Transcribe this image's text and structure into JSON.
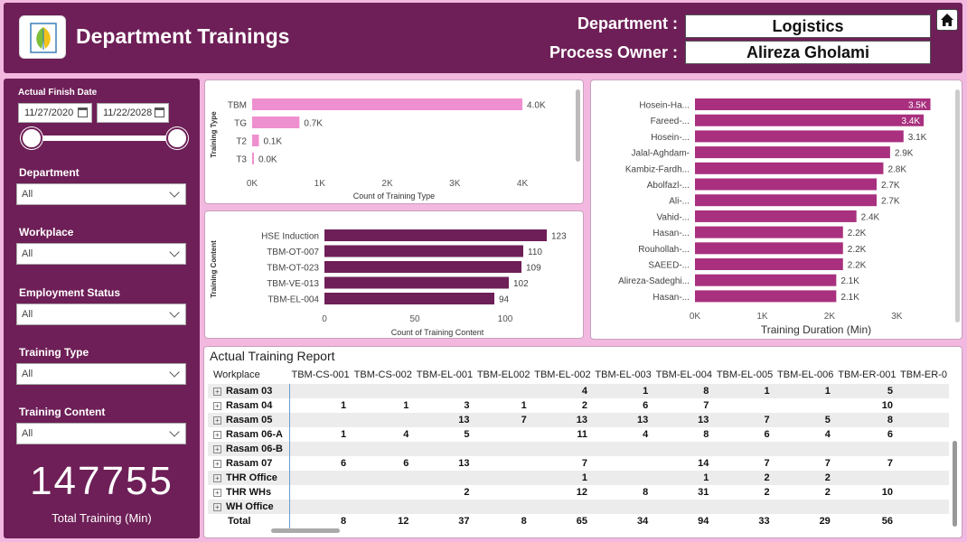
{
  "header": {
    "title": "Department Trainings",
    "department_label": "Department :",
    "department_value": "Logistics",
    "owner_label": "Process Owner :",
    "owner_value": "Alireza Gholami"
  },
  "filters": {
    "date_title": "Actual Finish Date",
    "date_start": "11/27/2020",
    "date_end": "11/22/2028",
    "department": {
      "label": "Department",
      "value": "All"
    },
    "workplace": {
      "label": "Workplace",
      "value": "All"
    },
    "employment_status": {
      "label": "Employment Status",
      "value": "All"
    },
    "training_type": {
      "label": "Training Type",
      "value": "All"
    },
    "training_content": {
      "label": "Training Content",
      "value": "All"
    }
  },
  "kpi": {
    "value": "147755",
    "label": "Total Training (Min)"
  },
  "colors": {
    "header_bg": "#6e1f57",
    "page_bg": "#f2b8df",
    "bar_pink": "#ee8fcf",
    "bar_dark": "#6e1f57",
    "bar_magenta": "#a8307e"
  },
  "chart_data": [
    {
      "type": "bar",
      "orientation": "horizontal",
      "categories": [
        "TBM",
        "TG",
        "T2",
        "T3"
      ],
      "values": [
        4000,
        700,
        100,
        20
      ],
      "labels": [
        "4.0K",
        "0.7K",
        "0.1K",
        "0.0K"
      ],
      "xlabel": "Count of Training Type",
      "ylabel": "Training Type",
      "xticks": [
        "0K",
        "1K",
        "2K",
        "3K",
        "4K"
      ],
      "xlim": [
        0,
        4200
      ]
    },
    {
      "type": "bar",
      "orientation": "horizontal",
      "categories": [
        "HSE Induction",
        "TBM-OT-007",
        "TBM-OT-023",
        "TBM-VE-013",
        "TBM-EL-004"
      ],
      "values": [
        123,
        110,
        109,
        102,
        94
      ],
      "labels": [
        "123",
        "110",
        "109",
        "102",
        "94"
      ],
      "xlabel": "Count of Training Content",
      "ylabel": "Training Content",
      "xticks": [
        "0",
        "50",
        "100"
      ],
      "xlim": [
        0,
        125
      ]
    },
    {
      "type": "bar",
      "orientation": "horizontal",
      "categories": [
        "Hosein-Ha...",
        "Fareed-...",
        "Hosein-...",
        "Jalal-Aghdam-",
        "Kambiz-Fardh...",
        "Abolfazl-...",
        "Ali-...",
        "Vahid-...",
        "Hasan-...",
        "Rouhollah-...",
        "SAEED-...",
        "Alireza-Sadeghi...",
        "Hasan-..."
      ],
      "values": [
        3500,
        3400,
        3100,
        2900,
        2800,
        2700,
        2700,
        2400,
        2200,
        2200,
        2200,
        2100,
        2100
      ],
      "labels": [
        "3.5K",
        "3.4K",
        "3.1K",
        "2.9K",
        "2.8K",
        "2.7K",
        "2.7K",
        "2.4K",
        "2.2K",
        "2.2K",
        "2.2K",
        "2.1K",
        "2.1K"
      ],
      "xlabel": "Training Duration (Min)",
      "xticks": [
        "0K",
        "1K",
        "2K",
        "3K"
      ],
      "xlim": [
        0,
        3600
      ]
    }
  ],
  "table": {
    "title": "Actual Training Report",
    "row_header": "Workplace",
    "columns": [
      "TBM-CS-001",
      "TBM-CS-002",
      "TBM-EL-001",
      "TBM-EL002",
      "TBM-EL-002",
      "TBM-EL-003",
      "TBM-EL-004",
      "TBM-EL-005",
      "TBM-EL-006",
      "TBM-ER-001",
      "TBM-ER-0"
    ],
    "rows": [
      {
        "name": "Rasam 03",
        "cells": [
          "",
          "",
          "",
          "",
          "4",
          "1",
          "8",
          "1",
          "1",
          "5",
          ""
        ]
      },
      {
        "name": "Rasam 04",
        "cells": [
          "1",
          "1",
          "3",
          "1",
          "2",
          "6",
          "7",
          "",
          "",
          "10",
          ""
        ]
      },
      {
        "name": "Rasam 05",
        "cells": [
          "",
          "",
          "13",
          "7",
          "13",
          "13",
          "13",
          "7",
          "5",
          "8",
          ""
        ]
      },
      {
        "name": "Rasam 06-A",
        "cells": [
          "1",
          "4",
          "5",
          "",
          "11",
          "4",
          "8",
          "6",
          "4",
          "6",
          ""
        ]
      },
      {
        "name": "Rasam 06-B",
        "cells": [
          "",
          "",
          "",
          "",
          "",
          "",
          "",
          "",
          "",
          "",
          ""
        ]
      },
      {
        "name": "Rasam 07",
        "cells": [
          "6",
          "6",
          "13",
          "",
          "7",
          "",
          "14",
          "7",
          "7",
          "7",
          ""
        ]
      },
      {
        "name": "THR Office",
        "cells": [
          "",
          "",
          "",
          "",
          "1",
          "",
          "1",
          "2",
          "2",
          "",
          ""
        ]
      },
      {
        "name": "THR WHs",
        "cells": [
          "",
          "",
          "2",
          "",
          "12",
          "8",
          "31",
          "2",
          "2",
          "10",
          ""
        ]
      },
      {
        "name": "WH Office",
        "cells": [
          "",
          "",
          "",
          "",
          "",
          "",
          "",
          "",
          "",
          "",
          ""
        ]
      }
    ],
    "total": {
      "name": "Total",
      "cells": [
        "8",
        "12",
        "37",
        "8",
        "65",
        "34",
        "94",
        "33",
        "29",
        "56",
        ""
      ]
    }
  }
}
